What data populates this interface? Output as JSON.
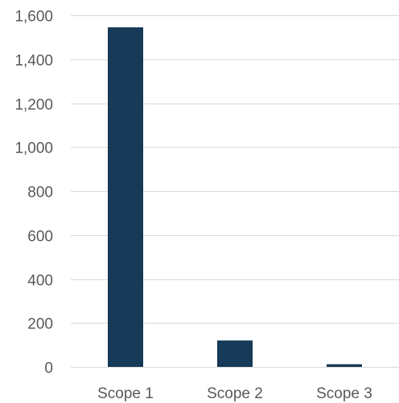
{
  "chart_data": {
    "type": "bar",
    "title": "",
    "xlabel": "",
    "ylabel": "",
    "categories": [
      "Scope 1",
      "Scope 2",
      "Scope 3"
    ],
    "values": [
      1545,
      120,
      12
    ],
    "ylim": [
      0,
      1600
    ],
    "yticks": [
      0,
      200,
      400,
      600,
      800,
      1000,
      1200,
      1400,
      1600
    ],
    "ytick_labels": [
      "0",
      "200",
      "400",
      "600",
      "800",
      "1,000",
      "1,200",
      "1,400",
      "1,600"
    ],
    "grid": true,
    "legend": "none",
    "colors": {
      "bar": "#163a57",
      "grid": "#d9d9d9",
      "text": "#595959"
    }
  }
}
